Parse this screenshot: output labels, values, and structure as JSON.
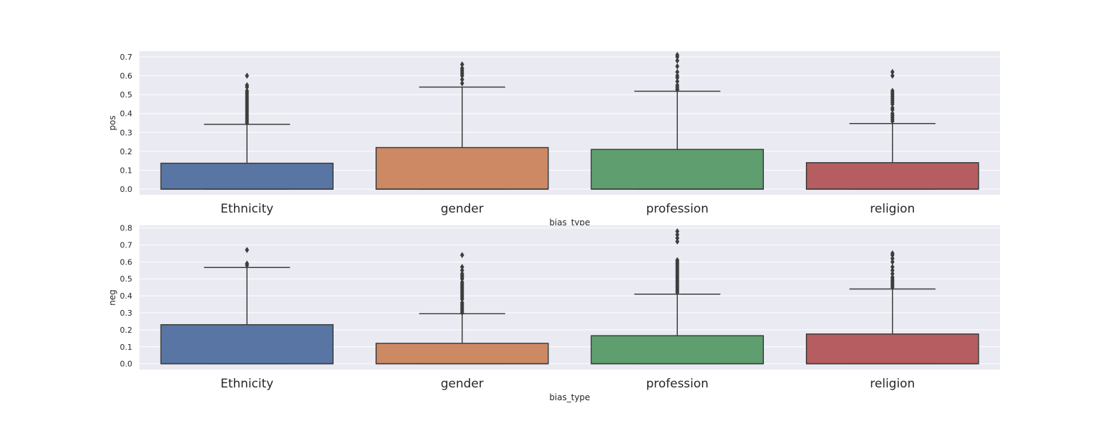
{
  "chart_data": [
    {
      "type": "box",
      "xlabel": "bias_type",
      "ylabel": "pos",
      "ylim": [
        -0.03,
        0.73
      ],
      "yticks": [
        "0.0",
        "0.1",
        "0.2",
        "0.3",
        "0.4",
        "0.5",
        "0.6",
        "0.7"
      ],
      "grid": true,
      "categories": [
        "Ethnicity",
        "gender",
        "profession",
        "religion"
      ],
      "colors": [
        "#5975a4",
        "#cc8963",
        "#5f9e6e",
        "#b55d60"
      ],
      "boxes": [
        {
          "category": "Ethnicity",
          "min": 0.0,
          "q1": 0.0,
          "median": 0.0,
          "q3": 0.137,
          "whisker_high": 0.343,
          "outliers": [
            0.35,
            0.36,
            0.37,
            0.38,
            0.39,
            0.4,
            0.41,
            0.42,
            0.43,
            0.44,
            0.45,
            0.46,
            0.47,
            0.48,
            0.49,
            0.5,
            0.51,
            0.52,
            0.54,
            0.55,
            0.6
          ]
        },
        {
          "category": "gender",
          "min": 0.0,
          "q1": 0.0,
          "median": 0.0,
          "q3": 0.22,
          "whisker_high": 0.54,
          "outliers": [
            0.56,
            0.58,
            0.6,
            0.61,
            0.62,
            0.63,
            0.64,
            0.66
          ]
        },
        {
          "category": "profession",
          "min": 0.0,
          "q1": 0.0,
          "median": 0.0,
          "q3": 0.21,
          "whisker_high": 0.518,
          "outliers": [
            0.525,
            0.53,
            0.54,
            0.55,
            0.57,
            0.59,
            0.6,
            0.62,
            0.65,
            0.68,
            0.7,
            0.71
          ]
        },
        {
          "category": "religion",
          "min": 0.0,
          "q1": 0.0,
          "median": 0.0,
          "q3": 0.14,
          "whisker_high": 0.347,
          "outliers": [
            0.36,
            0.37,
            0.38,
            0.39,
            0.4,
            0.42,
            0.43,
            0.45,
            0.46,
            0.47,
            0.48,
            0.49,
            0.5,
            0.51,
            0.52,
            0.6,
            0.62
          ]
        }
      ]
    },
    {
      "type": "box",
      "xlabel": "bias_type",
      "ylabel": "neg",
      "ylim": [
        -0.035,
        0.815
      ],
      "yticks": [
        "0.0",
        "0.1",
        "0.2",
        "0.3",
        "0.4",
        "0.5",
        "0.6",
        "0.7",
        "0.8"
      ],
      "grid": true,
      "categories": [
        "Ethnicity",
        "gender",
        "profession",
        "religion"
      ],
      "colors": [
        "#5975a4",
        "#cc8963",
        "#5f9e6e",
        "#b55d60"
      ],
      "boxes": [
        {
          "category": "Ethnicity",
          "min": 0.0,
          "q1": 0.0,
          "median": 0.0,
          "q3": 0.23,
          "whisker_high": 0.567,
          "outliers": [
            0.58,
            0.59,
            0.67
          ]
        },
        {
          "category": "gender",
          "min": 0.0,
          "q1": 0.0,
          "median": 0.0,
          "q3": 0.12,
          "whisker_high": 0.295,
          "outliers": [
            0.3,
            0.31,
            0.32,
            0.33,
            0.34,
            0.35,
            0.36,
            0.38,
            0.39,
            0.4,
            0.41,
            0.42,
            0.43,
            0.44,
            0.45,
            0.46,
            0.47,
            0.48,
            0.5,
            0.51,
            0.52,
            0.53,
            0.55,
            0.57,
            0.64
          ]
        },
        {
          "category": "profession",
          "min": 0.0,
          "q1": 0.0,
          "median": 0.0,
          "q3": 0.165,
          "whisker_high": 0.41,
          "outliers": [
            0.42,
            0.43,
            0.44,
            0.45,
            0.46,
            0.47,
            0.48,
            0.49,
            0.5,
            0.51,
            0.52,
            0.53,
            0.54,
            0.55,
            0.56,
            0.57,
            0.58,
            0.59,
            0.6,
            0.61,
            0.72,
            0.74,
            0.76,
            0.78
          ]
        },
        {
          "category": "religion",
          "min": 0.0,
          "q1": 0.0,
          "median": 0.0,
          "q3": 0.175,
          "whisker_high": 0.44,
          "outliers": [
            0.45,
            0.46,
            0.47,
            0.48,
            0.49,
            0.5,
            0.51,
            0.53,
            0.55,
            0.57,
            0.6,
            0.62,
            0.64,
            0.65
          ]
        }
      ]
    }
  ]
}
